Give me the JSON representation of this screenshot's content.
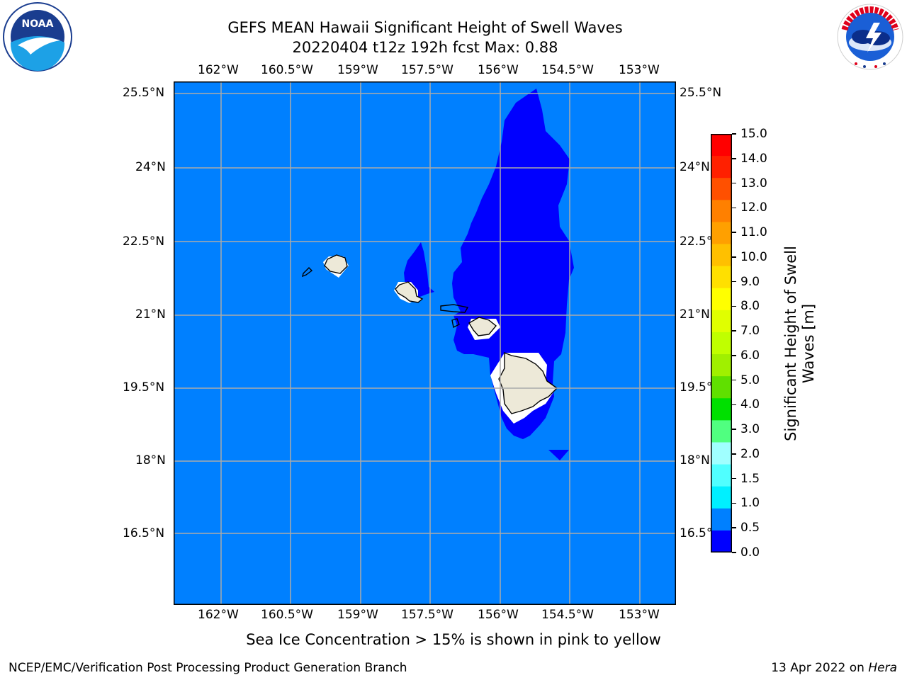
{
  "header": {
    "title_line1": "GEFS MEAN Hawaii Significant Height of Swell Waves",
    "title_line2": "20220404 t12z 192h fcst   Max: 0.88"
  },
  "logos": {
    "left": {
      "text": "NOAA",
      "ring_text": "NATIONAL OCEANIC AND ATMOSPHERIC ADMINISTRATION · U.S. DEPARTMENT OF COMMERCE"
    },
    "right": {
      "ring_text": "NATIONAL WEATHER SERVICE"
    }
  },
  "map": {
    "lon_labels": [
      "162°W",
      "160.5°W",
      "159°W",
      "157.5°W",
      "156°W",
      "154.5°W",
      "153°W"
    ],
    "lat_labels": [
      "25.5°N",
      "24°N",
      "22.5°N",
      "21°N",
      "19.5°N",
      "18°N",
      "16.5°N"
    ],
    "colors": {
      "ocean_05_10": "#0080ff",
      "swell_00_05": "#0000ff",
      "land": "#ede9d8",
      "grid": "#aaaaaa"
    }
  },
  "colorbar": {
    "label": "Significant Height of Swell Waves [m]",
    "ticks": [
      "15.0",
      "14.0",
      "13.0",
      "12.0",
      "11.0",
      "10.0",
      "9.0",
      "8.0",
      "7.0",
      "6.0",
      "5.0",
      "4.0",
      "3.0",
      "2.0",
      "1.5",
      "1.0",
      "0.5",
      "0.0"
    ],
    "colors_top_to_bottom": [
      "#ff0000",
      "#ff2000",
      "#ff5000",
      "#ff8000",
      "#ffa000",
      "#ffc000",
      "#ffe000",
      "#ffff00",
      "#e0ff00",
      "#c0ff00",
      "#a0f000",
      "#60e000",
      "#00e000",
      "#50ff80",
      "#a0ffff",
      "#50ffff",
      "#00f0ff",
      "#0080ff",
      "#0000ff"
    ]
  },
  "caption": "Sea Ice Concentration > 15% is shown in pink to yellow",
  "footer": {
    "left": "NCEP/EMC/Verification Post Processing Product Generation Branch",
    "right_date": "13 Apr 2022 on",
    "right_host": "Hera"
  }
}
